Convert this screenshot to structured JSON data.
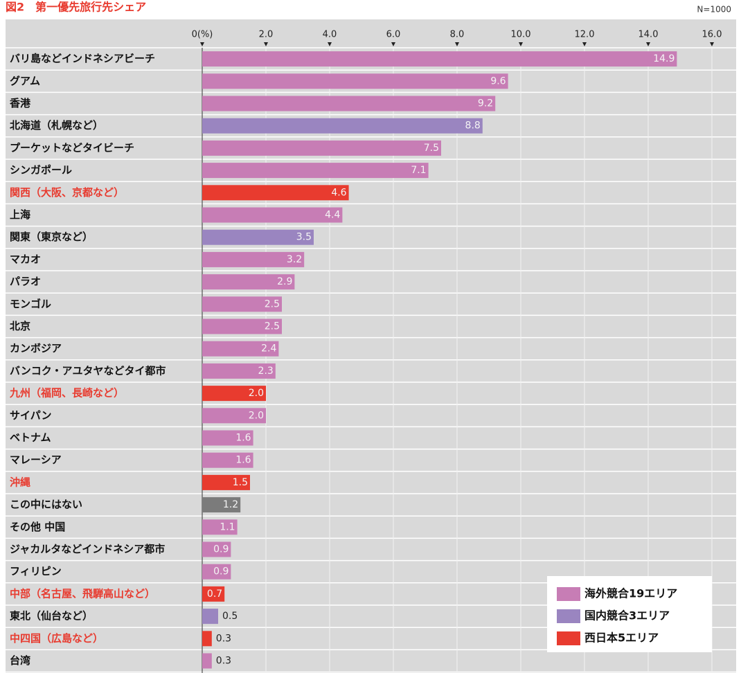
{
  "chart_data": {
    "type": "barh",
    "title": "図2　第一優先旅行先シェア",
    "subtitle": "N=1000",
    "categories": [
      "バリ島などインドネシアビーチ",
      "グアム",
      "香港",
      "北海道（札幌など）",
      "プーケットなどタイビーチ",
      "シンガポール",
      "関西（大阪、京都など）",
      "上海",
      "関東（東京など）",
      "マカオ",
      "パラオ",
      "モンゴル",
      "北京",
      "カンボジア",
      "バンコク・アユタヤなどタイ都市",
      "九州（福岡、長崎など）",
      "サイパン",
      "ベトナム",
      "マレーシア",
      "沖縄",
      "この中にはない",
      "その他 中国",
      "ジャカルタなどインドネシア都市",
      "フィリピン",
      "中部（名古屋、飛騨高山など）",
      "東北（仙台など）",
      "中四国（広島など）",
      "台湾"
    ],
    "values": [
      14.9,
      9.6,
      9.2,
      8.8,
      7.5,
      7.1,
      4.6,
      4.4,
      3.5,
      3.2,
      2.9,
      2.5,
      2.5,
      2.4,
      2.3,
      2.0,
      2.0,
      1.6,
      1.6,
      1.5,
      1.2,
      1.1,
      0.9,
      0.9,
      0.7,
      0.5,
      0.3,
      0.3
    ],
    "value_labels": [
      "14.9",
      "9.6",
      "9.2",
      "8.8",
      "7.5",
      "7.1",
      "4.6",
      "4.4",
      "3.5",
      "3.2",
      "2.9",
      "2.5",
      "2.5",
      "2.4",
      "2.3",
      "2.0",
      "2.0",
      "1.6",
      "1.6",
      "1.5",
      "1.2",
      "1.1",
      "0.9",
      "0.9",
      "0.7",
      "0.5",
      "0.3",
      "0.3"
    ],
    "colors": [
      "#c77db5",
      "#c77db5",
      "#c77db5",
      "#9a85c0",
      "#c77db5",
      "#c77db5",
      "#e83b2f",
      "#c77db5",
      "#9a85c0",
      "#c77db5",
      "#c77db5",
      "#c77db5",
      "#c77db5",
      "#c77db5",
      "#c77db5",
      "#e83b2f",
      "#c77db5",
      "#c77db5",
      "#c77db5",
      "#e83b2f",
      "#7b7b7b",
      "#c77db5",
      "#c77db5",
      "#c77db5",
      "#e83b2f",
      "#9a85c0",
      "#e83b2f",
      "#c77db5"
    ],
    "label_colors": [
      "#111",
      "#111",
      "#111",
      "#111",
      "#111",
      "#111",
      "#e83b2f",
      "#111",
      "#111",
      "#111",
      "#111",
      "#111",
      "#111",
      "#111",
      "#111",
      "#e83b2f",
      "#111",
      "#111",
      "#111",
      "#e83b2f",
      "#111",
      "#111",
      "#111",
      "#111",
      "#e83b2f",
      "#111",
      "#e83b2f",
      "#111"
    ],
    "xlim": [
      0,
      16
    ],
    "xticks": [
      {
        "value": 0,
        "label": "0(%)"
      },
      {
        "value": 2,
        "label": "2.0"
      },
      {
        "value": 4,
        "label": "4.0"
      },
      {
        "value": 6,
        "label": "6.0"
      },
      {
        "value": 8,
        "label": "8.0"
      },
      {
        "value": 10,
        "label": "10.0"
      },
      {
        "value": 12,
        "label": "12.0"
      },
      {
        "value": 14,
        "label": "14.0"
      },
      {
        "value": 16,
        "label": "16.0"
      }
    ],
    "grid": true,
    "legend": [
      {
        "name": "海外競合19エリア",
        "color": "#c77db5"
      },
      {
        "name": "国内競合3エリア",
        "color": "#9a85c0"
      },
      {
        "name": "西日本5エリア",
        "color": "#e83b2f"
      }
    ]
  }
}
